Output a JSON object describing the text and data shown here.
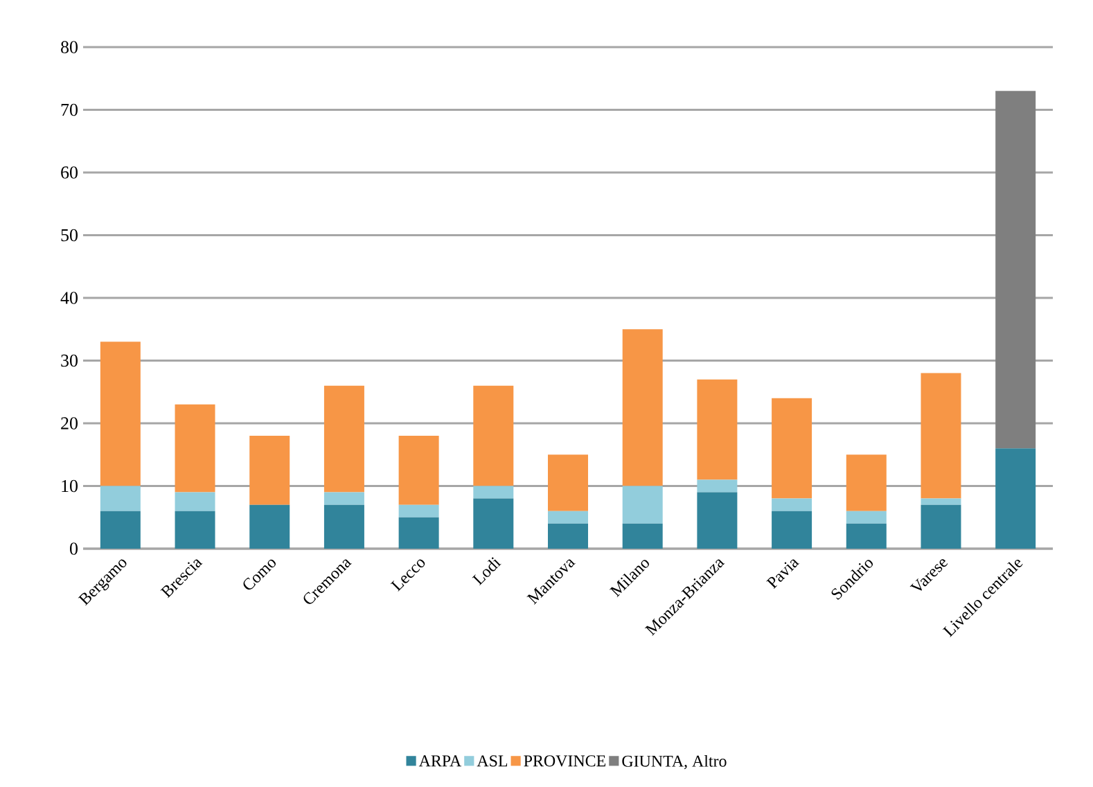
{
  "chart_data": {
    "type": "bar",
    "stacked": true,
    "categories": [
      "Bergamo",
      "Brescia",
      "Como",
      "Cremona",
      "Lecco",
      "Lodi",
      "Mantova",
      "Milano",
      "Monza-Brianza",
      "Pavia",
      "Sondrio",
      "Varese",
      "Livello centrale"
    ],
    "series": [
      {
        "name": "ARPA",
        "color": "#31849b",
        "values": [
          6,
          6,
          7,
          7,
          5,
          8,
          4,
          4,
          9,
          6,
          4,
          7,
          16
        ]
      },
      {
        "name": "ASL",
        "color": "#92cddc",
        "values": [
          4,
          3,
          0,
          2,
          2,
          2,
          2,
          6,
          2,
          2,
          2,
          1,
          0
        ]
      },
      {
        "name": "PROVINCE",
        "color": "#f79646",
        "values": [
          23,
          14,
          11,
          17,
          11,
          16,
          9,
          25,
          16,
          16,
          9,
          20,
          0
        ]
      },
      {
        "name": "GIUNTA, Altro",
        "color": "#7f7f7f",
        "values": [
          0,
          0,
          0,
          0,
          0,
          0,
          0,
          0,
          0,
          0,
          0,
          0,
          57
        ]
      }
    ],
    "ylim": [
      0,
      80
    ],
    "yticks": [
      0,
      10,
      20,
      30,
      40,
      50,
      60,
      70,
      80
    ],
    "grid": "y",
    "legend": "bottom"
  }
}
